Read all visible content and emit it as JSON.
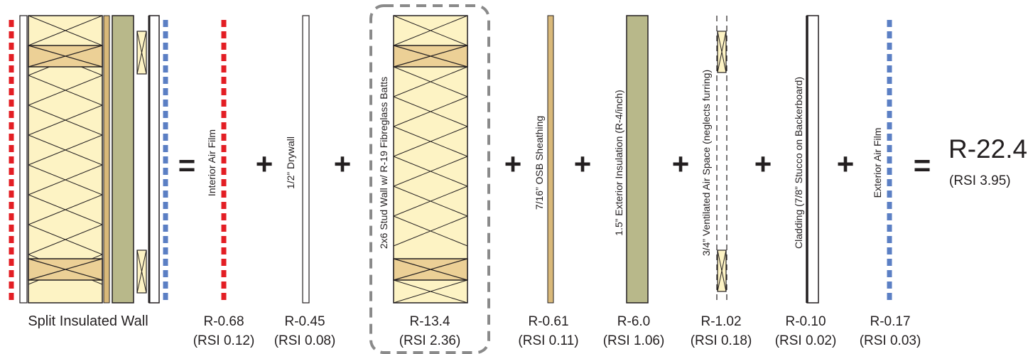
{
  "title_left": "Split Insulated Wall",
  "operators": {
    "equals": "=",
    "plus": "+"
  },
  "layers": [
    {
      "id": "interior-air-film",
      "name": "Interior Air Film",
      "r": "R-0.68",
      "rsi": "(RSI 0.12)",
      "color": "#e31e24"
    },
    {
      "id": "drywall",
      "name": "1/2” Drywall",
      "r": "R-0.45",
      "rsi": "(RSI 0.08)"
    },
    {
      "id": "stud-wall",
      "name": "2x6 Stud Wall w/ R-19 Fibreglass Batts",
      "r": "R-13.4",
      "rsi": "(RSI 2.36)",
      "highlighted": true
    },
    {
      "id": "osb-sheathing",
      "name": "7/16” OSB Sheathing",
      "r": "R-0.61",
      "rsi": "(RSI 0.11)"
    },
    {
      "id": "exterior-insulation",
      "name": "1.5” Exterior Insulation (R-4/inch)",
      "r": "R-6.0",
      "rsi": "(RSI 1.06)"
    },
    {
      "id": "air-space",
      "name": "3/4” Ventilated Air Space (neglects furring)",
      "r": "R-1.02",
      "rsi": "(RSI 0.18)"
    },
    {
      "id": "cladding",
      "name": "Cladding (7/8” Stucco on Backerboard)",
      "r": "R-0.10",
      "rsi": "(RSI 0.02)"
    },
    {
      "id": "exterior-air-film",
      "name": "Exterior Air Film",
      "r": "R-0.17",
      "rsi": "(RSI 0.03)",
      "color": "#5b7fc4"
    }
  ],
  "total": {
    "r": "R-22.4",
    "rsi": "(RSI 3.95)"
  },
  "colors": {
    "batt": "#fdf3c4",
    "stud": "#ecd096",
    "insulation": "#b8b88a",
    "interior_film": "#e31e24",
    "exterior_film": "#5b7fc4",
    "dashed_frame": "#8a8a8a"
  }
}
